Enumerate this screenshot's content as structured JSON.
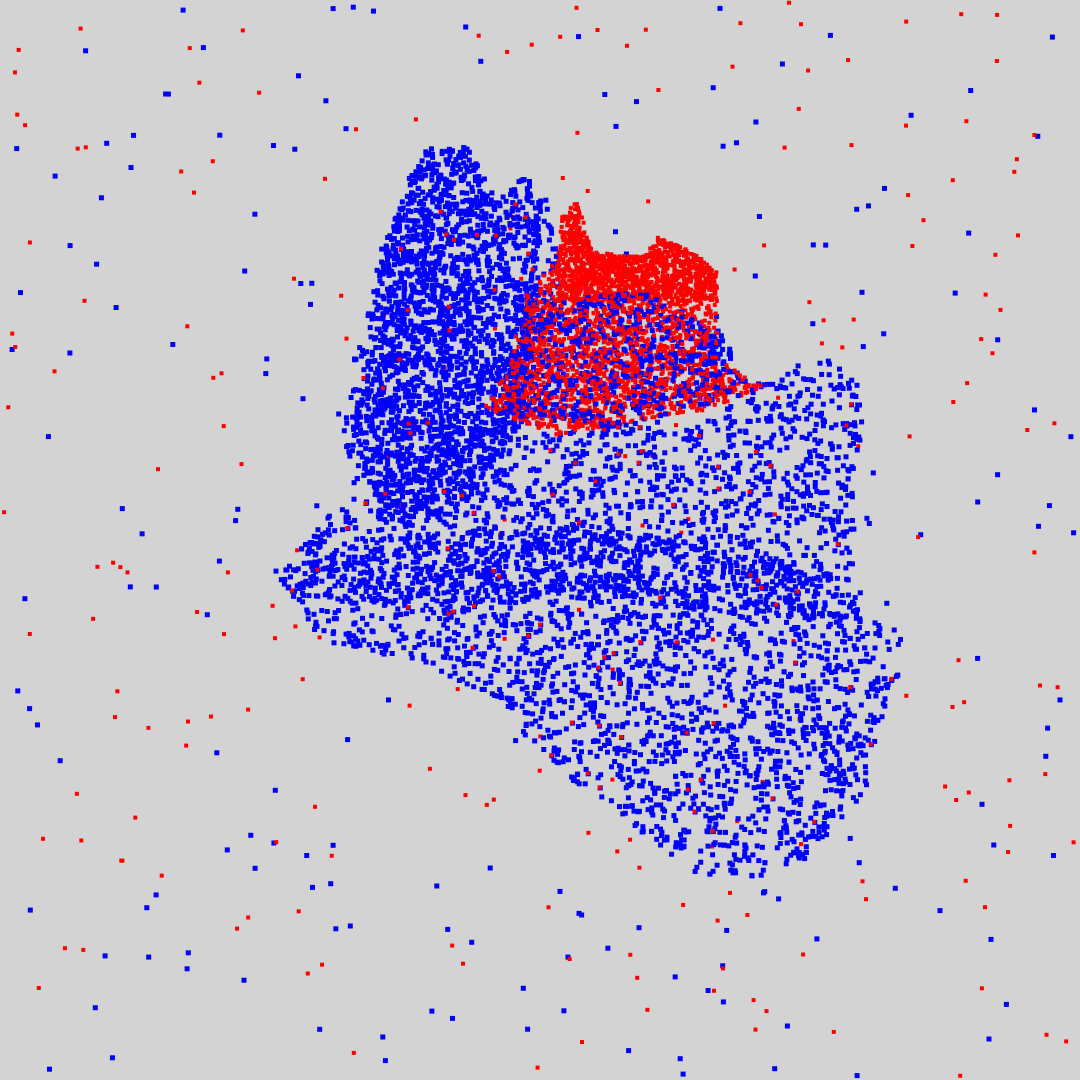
{
  "scene": {
    "background": "#d3d3d3",
    "colors": [
      "#0000ff",
      "#ff0000"
    ]
  }
}
